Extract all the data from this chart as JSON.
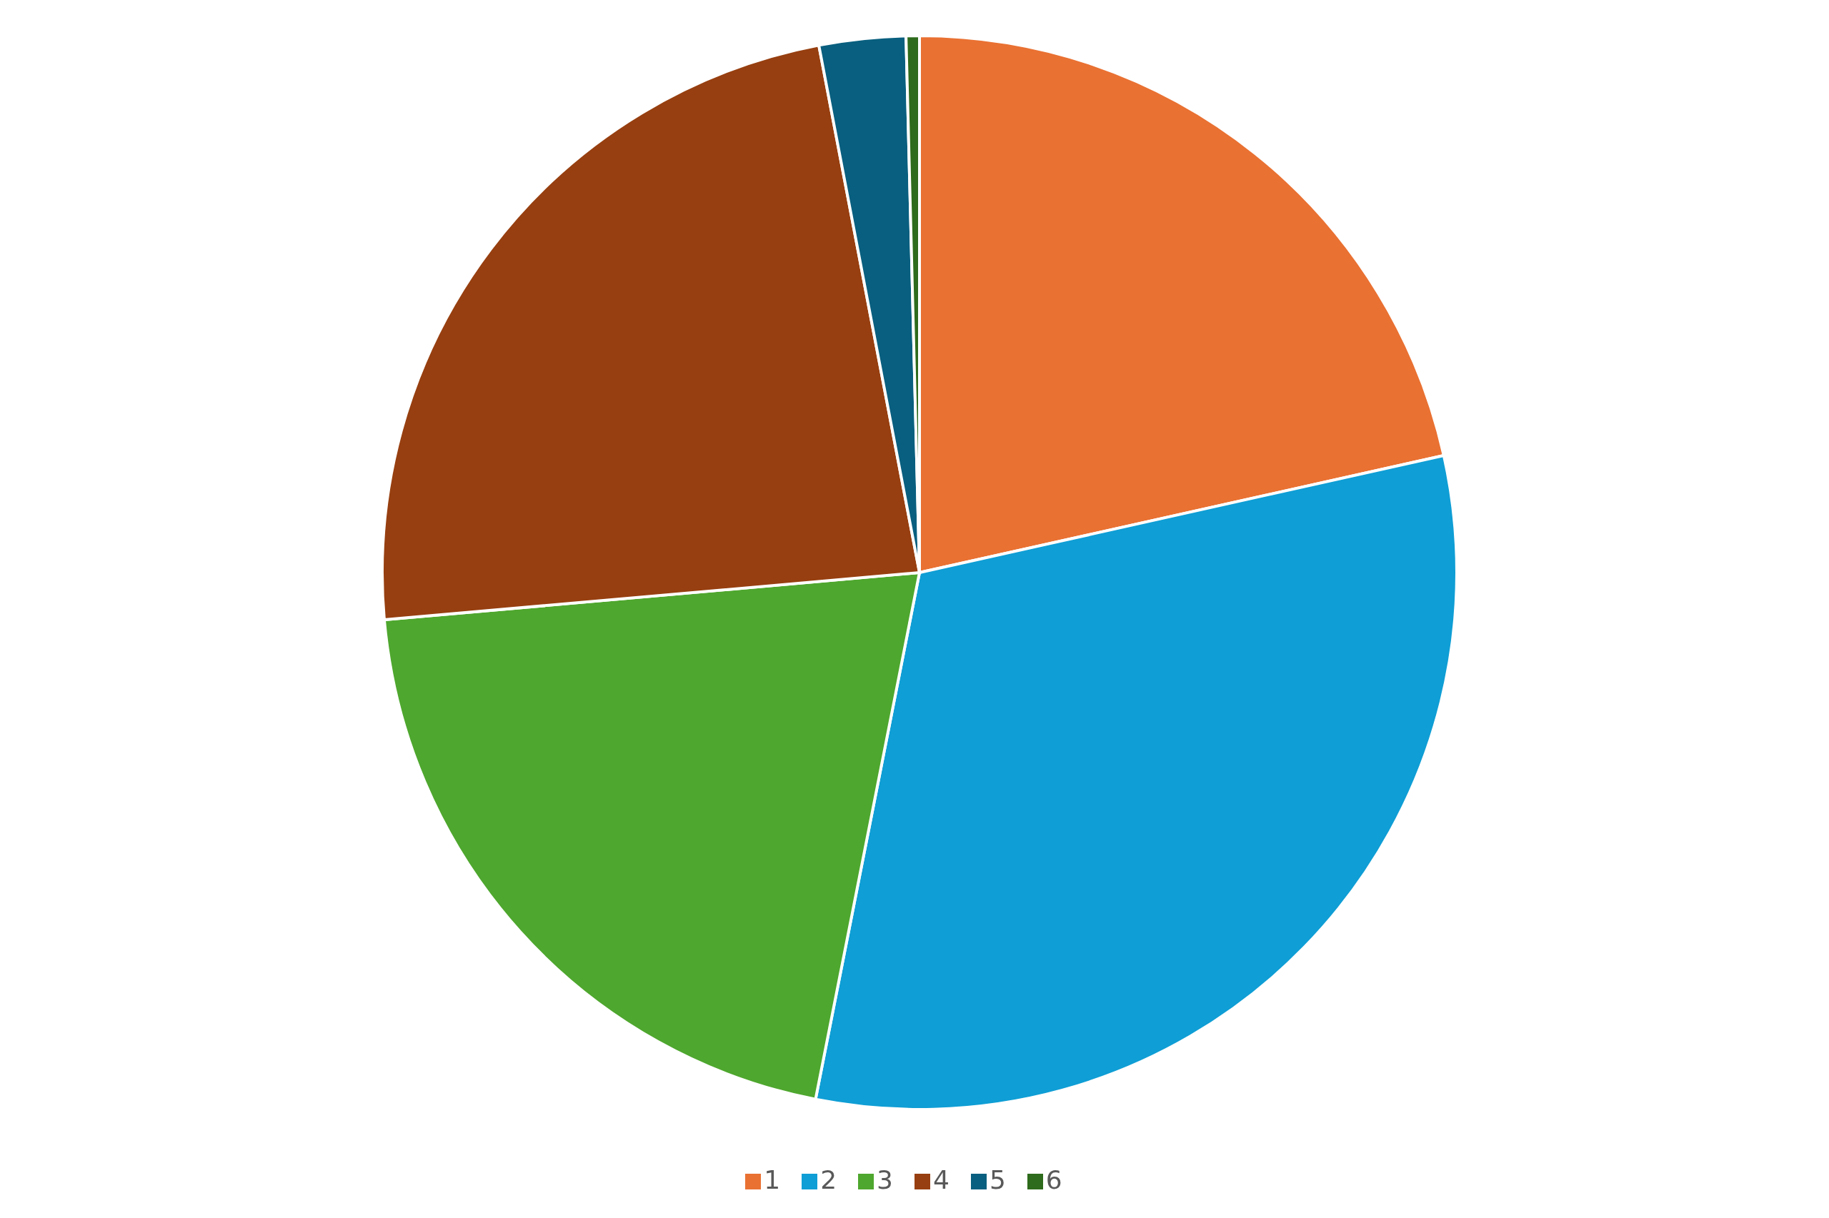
{
  "chart_data": {
    "type": "pie",
    "categories": [
      "1",
      "2",
      "3",
      "4",
      "5",
      "6"
    ],
    "values": [
      21.5,
      31.6,
      20.5,
      23.4,
      2.6,
      0.4
    ],
    "colors": [
      "#e97132",
      "#0f9ed5",
      "#4ea72e",
      "#973f10",
      "#095f7f",
      "#2e6b1c"
    ],
    "legend": "bottom"
  }
}
